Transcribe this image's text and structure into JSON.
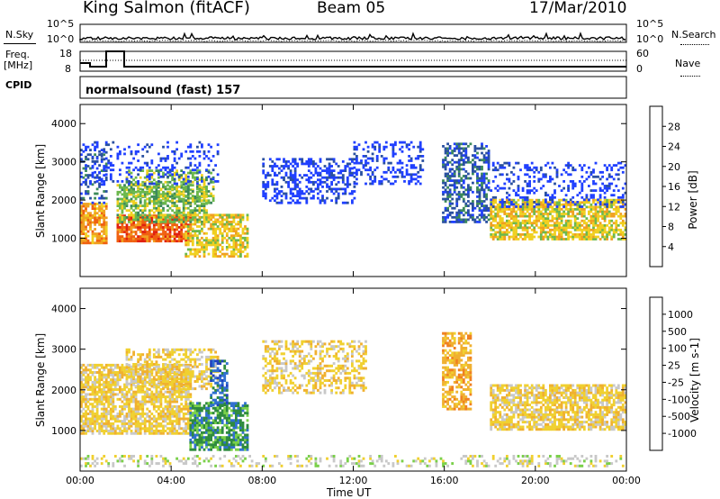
{
  "header": {
    "title": "King Salmon (fitACF)",
    "beam": "Beam 05",
    "date": "17/Mar/2010"
  },
  "summary": {
    "nsky_label": "N.Sky",
    "nsearch_label": "N.Search",
    "freq_label_line1": "Freq.",
    "freq_label_line2": "[MHz]",
    "nave_label": "Nave",
    "cpid_label": "CPID",
    "noise_ticks": [
      "10^5",
      "10^0"
    ],
    "noise_ticks_right": [
      "10^5",
      "10^0"
    ],
    "freq_ticks": [
      "18",
      "8"
    ],
    "nave_ticks": [
      "60",
      "0"
    ],
    "cpid_text": "normalsound (fast) 157"
  },
  "colors": {
    "power_scale": [
      "#2040ff",
      "#2a50a0",
      "#3c8a5a",
      "#6cb84c",
      "#f0d020",
      "#f0a020",
      "#f06010",
      "#e02010"
    ],
    "velocity_scale": [
      "#2040c0",
      "#3070d0",
      "#2e8b3e",
      "#7ad04a",
      "#c8c8c8",
      "#f0d030",
      "#f0b030",
      "#f08020",
      "#e84010",
      "#e01010"
    ],
    "low_power": "#2a3cc8",
    "ground_scatter": "#c0c0c0"
  },
  "chart_data": [
    {
      "type": "heatmap",
      "panel": "power",
      "ylabel": "Slant Range [km]",
      "yticks": [
        "1000",
        "2000",
        "3000",
        "4000"
      ],
      "ylim": [
        0,
        4500
      ],
      "xlim": [
        0,
        24
      ],
      "colorbar": {
        "label": "Power [dB]",
        "ticks": [
          "4",
          "8",
          "12",
          "16",
          "20",
          "24",
          "28"
        ]
      },
      "regions": [
        {
          "t0": 0.0,
          "t1": 1.1,
          "r0": 850,
          "r1": 1900,
          "level": 5,
          "density": 0.8
        },
        {
          "t0": 0.0,
          "t1": 1.1,
          "r0": 1900,
          "r1": 3300,
          "level": 1,
          "density": 0.35
        },
        {
          "t0": 1.6,
          "t1": 4.8,
          "r0": 900,
          "r1": 1600,
          "level": 6,
          "density": 0.85
        },
        {
          "t0": 1.6,
          "t1": 5.5,
          "r0": 1400,
          "r1": 2400,
          "level": 3,
          "density": 0.6
        },
        {
          "t0": 2.0,
          "t1": 5.8,
          "r0": 1900,
          "r1": 2800,
          "level": 3,
          "density": 0.45
        },
        {
          "t0": 4.6,
          "t1": 7.3,
          "r0": 500,
          "r1": 1600,
          "level": 4,
          "density": 0.6
        },
        {
          "t0": 0.0,
          "t1": 6.0,
          "r0": 2400,
          "r1": 3500,
          "level": 0,
          "density": 0.2
        },
        {
          "t0": 8.0,
          "t1": 12.0,
          "r0": 1900,
          "r1": 3100,
          "level": 0,
          "density": 0.45
        },
        {
          "t0": 12.0,
          "t1": 15.0,
          "r0": 2400,
          "r1": 3500,
          "level": 0,
          "density": 0.3
        },
        {
          "t0": 15.9,
          "t1": 18.0,
          "r0": 1400,
          "r1": 3500,
          "level": 1,
          "density": 0.55
        },
        {
          "t0": 18.0,
          "t1": 24.0,
          "r0": 950,
          "r1": 2000,
          "level": 4,
          "density": 0.7
        },
        {
          "t0": 18.0,
          "t1": 24.0,
          "r0": 1800,
          "r1": 3000,
          "level": 0,
          "density": 0.25
        }
      ]
    },
    {
      "type": "heatmap",
      "panel": "velocity",
      "ylabel": "Slant Range [km]",
      "yticks": [
        "1000",
        "2000",
        "3000",
        "4000"
      ],
      "ylim": [
        0,
        4500
      ],
      "xlim": [
        0,
        24
      ],
      "xticks": [
        "00:00",
        "04:00",
        "08:00",
        "12:00",
        "16:00",
        "20:00",
        "00:00"
      ],
      "xlabel": "Time UT",
      "colorbar": {
        "label": "Velocity [m s-1]",
        "ticks": [
          "1000",
          "500",
          "100",
          "25",
          "-25",
          "-100",
          "-500",
          "-1000"
        ]
      },
      "regions": [
        {
          "t0": 0.0,
          "t1": 4.8,
          "r0": 900,
          "r1": 2600,
          "level": 4,
          "density": 0.75
        },
        {
          "t0": 2.0,
          "t1": 6.0,
          "r0": 2000,
          "r1": 3000,
          "level": 4,
          "density": 0.5
        },
        {
          "t0": 4.8,
          "t1": 7.3,
          "r0": 500,
          "r1": 1700,
          "level": 7,
          "density": 0.8
        },
        {
          "t0": 5.7,
          "t1": 6.4,
          "r0": 1600,
          "r1": 2700,
          "level": 8,
          "density": 0.6
        },
        {
          "t0": 8.0,
          "t1": 12.5,
          "r0": 1900,
          "r1": 3200,
          "level": 4,
          "density": 0.45
        },
        {
          "t0": 15.9,
          "t1": 17.2,
          "r0": 1500,
          "r1": 3400,
          "level": 3,
          "density": 0.6
        },
        {
          "t0": 18.0,
          "t1": 24.0,
          "r0": 1000,
          "r1": 2100,
          "level": 4,
          "density": 0.7
        },
        {
          "t0": 0.0,
          "t1": 24.0,
          "r0": 100,
          "r1": 350,
          "level": 5,
          "density": 0.3
        }
      ]
    }
  ]
}
